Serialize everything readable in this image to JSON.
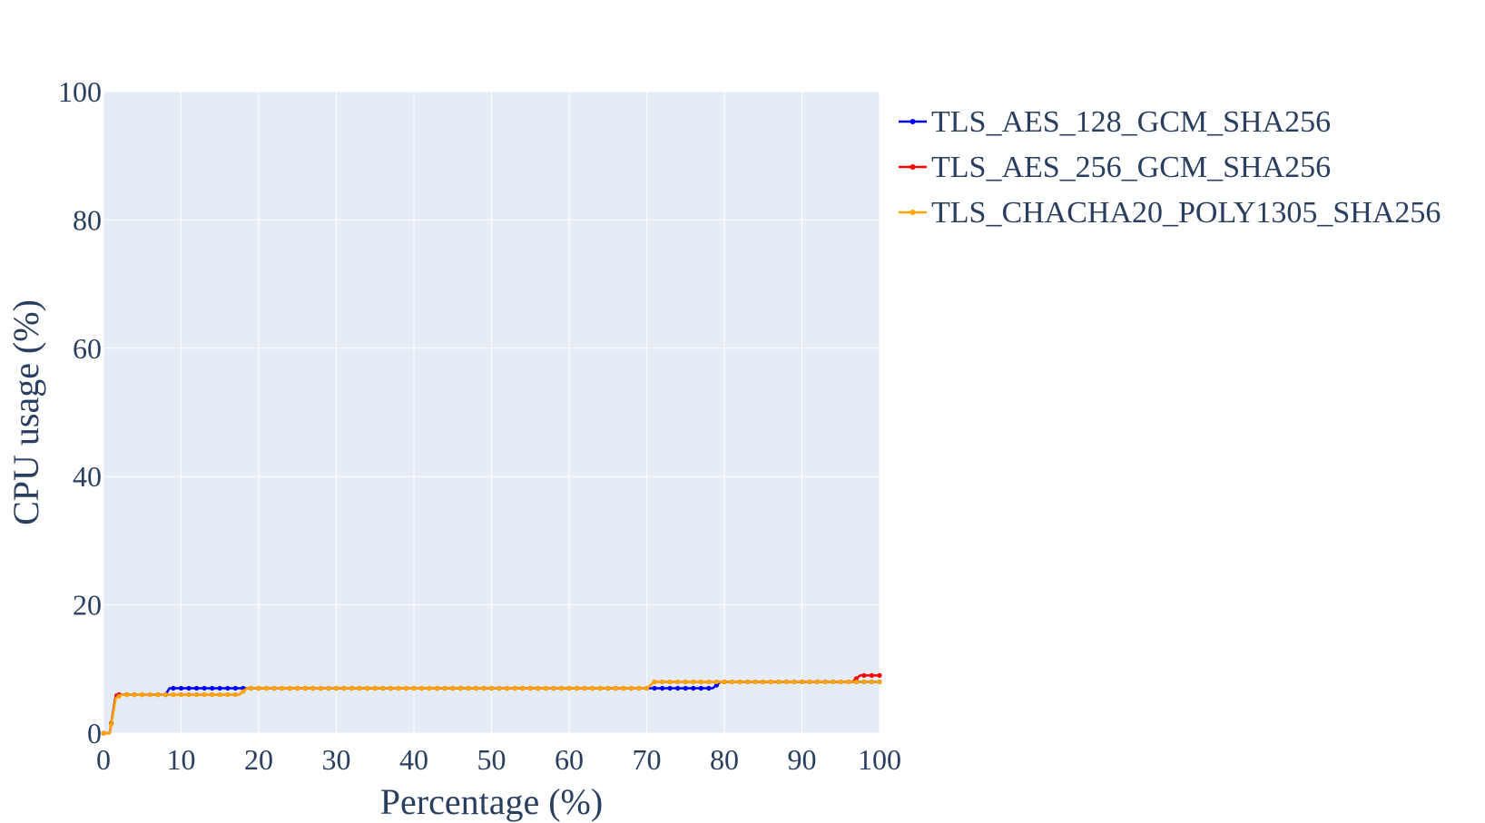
{
  "chart_data": {
    "type": "line",
    "title": "",
    "xlabel": "Percentage (%)",
    "ylabel": "CPU usage (%)",
    "xlim": [
      0,
      100
    ],
    "ylim": [
      0,
      100
    ],
    "x_ticks": [
      0,
      10,
      20,
      30,
      40,
      50,
      60,
      70,
      80,
      90,
      100
    ],
    "y_ticks": [
      0,
      20,
      40,
      60,
      80,
      100
    ],
    "grid": true,
    "legend_position": "top-right outside plot",
    "plot_background": "#e5ecf6",
    "grid_color": "#ffffff",
    "series": [
      {
        "name": "TLS_AES_128_GCM_SHA256",
        "color": "#0000ff",
        "segments": [
          [
            0,
            0
          ],
          [
            0.8,
            0
          ],
          [
            1.6,
            6
          ],
          [
            8,
            6
          ],
          [
            8.5,
            7
          ],
          [
            78.5,
            7
          ],
          [
            79.5,
            8
          ],
          [
            100,
            8
          ]
        ]
      },
      {
        "name": "TLS_AES_256_GCM_SHA256",
        "color": "#ff0000",
        "segments": [
          [
            0,
            0
          ],
          [
            0.8,
            0
          ],
          [
            1.6,
            6
          ],
          [
            17.5,
            6
          ],
          [
            18.5,
            7
          ],
          [
            70,
            7
          ],
          [
            71,
            8
          ],
          [
            96.5,
            8
          ],
          [
            97.5,
            9
          ],
          [
            100,
            9
          ]
        ]
      },
      {
        "name": "TLS_CHACHA20_POLY1305_SHA256",
        "color": "#ffa500",
        "segments": [
          [
            0,
            0
          ],
          [
            0.8,
            0
          ],
          [
            1.6,
            5.5
          ],
          [
            2.4,
            6
          ],
          [
            17.5,
            6
          ],
          [
            18.5,
            7
          ],
          [
            70,
            7
          ],
          [
            71,
            8
          ],
          [
            100,
            8
          ]
        ]
      }
    ]
  }
}
